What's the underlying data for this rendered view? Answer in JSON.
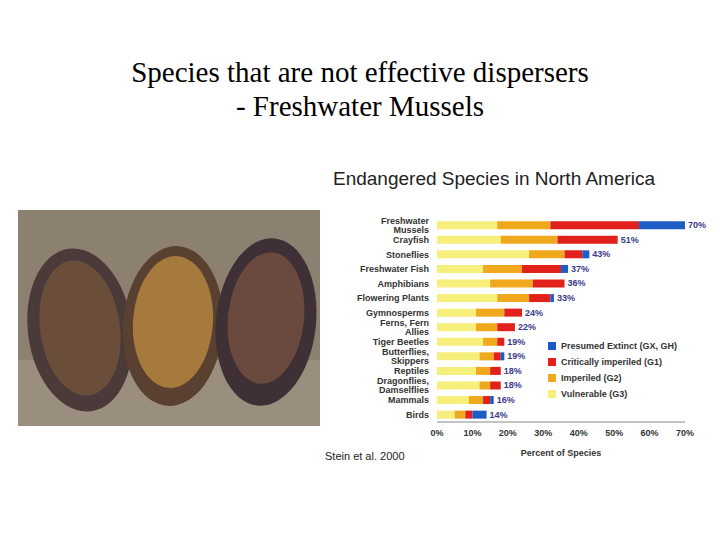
{
  "slide": {
    "title_lines": [
      "Species that are not effective dispersers",
      "- Freshwater Mussels"
    ]
  },
  "chart_data": {
    "type": "bar",
    "orientation": "horizontal",
    "stacked": true,
    "title": "Endangered Species in North America",
    "xlabel": "Percent of Species",
    "source": "Stein et al. 2000",
    "categories": [
      "Freshwater Mussels",
      "Crayfish",
      "Stoneflies",
      "Freshwater Fish",
      "Amphibians",
      "Flowering Plants",
      "Gymnosperms",
      "Ferns, Fern Allies",
      "Tiger Beetles",
      "Butterflies, Skippers",
      "Reptiles",
      "Dragonflies, Damselflies",
      "Mammals",
      "Birds"
    ],
    "series": [
      {
        "name": "Vulnerable (G3)",
        "color": "#f7ef7c",
        "values": [
          17,
          18,
          26,
          13,
          15,
          17,
          11,
          11,
          13,
          12,
          11,
          12,
          9,
          5
        ]
      },
      {
        "name": "Imperiled (G2)",
        "color": "#f0a81c",
        "values": [
          15,
          16,
          10,
          11,
          12,
          9,
          8,
          6,
          4,
          4,
          4,
          3,
          4,
          3
        ]
      },
      {
        "name": "Critically imperiled (G1)",
        "color": "#e3211c",
        "values": [
          25,
          17,
          5,
          11,
          9,
          6,
          5,
          5,
          2,
          2,
          3,
          3,
          2,
          2
        ]
      },
      {
        "name": "Presumed Extinct (GX, GH)",
        "color": "#1c5cc4",
        "values": [
          13,
          0,
          2,
          2,
          0,
          1,
          0,
          0,
          0,
          1,
          0,
          0,
          1,
          4
        ]
      }
    ],
    "totals": [
      70,
      51,
      43,
      37,
      36,
      33,
      24,
      22,
      19,
      19,
      18,
      18,
      16,
      14
    ],
    "total_labels": [
      "70%",
      "51%",
      "43%",
      "37%",
      "36%",
      "33%",
      "24%",
      "22%",
      "19%",
      "19%",
      "18%",
      "18%",
      "16%",
      "14%"
    ],
    "data_labels": true,
    "xlim": [
      0,
      70
    ],
    "xticks": [
      {
        "value": 0,
        "label": "0%"
      },
      {
        "value": 10,
        "label": "10%"
      },
      {
        "value": 20,
        "label": "20%"
      },
      {
        "value": 30,
        "label": "30%"
      },
      {
        "value": 40,
        "label": "40%"
      },
      {
        "value": 50,
        "label": "50%"
      },
      {
        "value": 60,
        "label": "60%"
      },
      {
        "value": 70,
        "label": "70%"
      }
    ],
    "grid": false,
    "legend": "lower right"
  }
}
